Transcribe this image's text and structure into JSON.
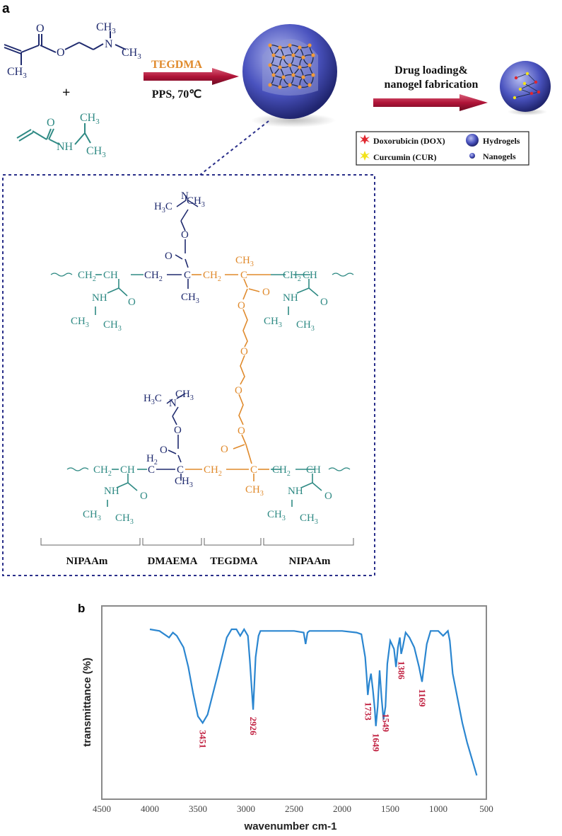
{
  "panel_a": {
    "label": "a",
    "reaction": {
      "dmaema": {
        "n_label": "N",
        "ch3_top": "CH",
        "ch3_bot": "CH",
        "ch3_left": "CH",
        "o1": "O",
        "o2": "O",
        "sub": "3"
      },
      "plus": "+",
      "nipaam": {
        "o": "O",
        "nh": "NH",
        "ch3_top": "CH",
        "ch3_bot": "CH",
        "sub": "3"
      },
      "arrow1_top": "TEGDMA",
      "arrow1_bottom": "PPS, 70℃",
      "arrow2_line1": "Drug loading&",
      "arrow2_line2": "nanogel fabrication"
    },
    "legend": {
      "items": [
        {
          "text": "Doxorubicin (DOX)",
          "icon": "red-star-icon",
          "color": "#e0262e"
        },
        {
          "text": "Hydrogels",
          "icon": "large-sphere-icon",
          "color": "#3a43a8"
        },
        {
          "text": "Curcumin (CUR)",
          "icon": "yellow-star-icon",
          "color": "#f2e21a"
        },
        {
          "text": "Nanogels",
          "icon": "small-sphere-icon",
          "color": "#3a43a8"
        }
      ]
    },
    "structure": {
      "ch2": "CH",
      "ch": "CH",
      "c": "C",
      "nh": "NH",
      "o": "O",
      "h2": "H",
      "ch3": "CH",
      "h3c": "H",
      "n": "N",
      "sub2": "2",
      "sub3": "3",
      "segments": [
        "NIPAAm",
        "DMAEMA",
        "TEGDMA",
        "NIPAAm"
      ]
    }
  },
  "panel_b": {
    "label": "b",
    "ylabel": "transmittance (%)",
    "xlabel": "wavenumber cm-1",
    "xticks": [
      "4500",
      "4000",
      "3500",
      "3000",
      "2500",
      "2000",
      "1500",
      "1000",
      "500"
    ],
    "peak_labels": [
      "3451",
      "2926",
      "1733",
      "1649",
      "1549",
      "1386",
      "1169"
    ],
    "colors": {
      "line": "#2b86d0",
      "peak": "#c01f3f"
    }
  },
  "chart_data": {
    "type": "line",
    "xlabel": "wavenumber cm-1",
    "ylabel": "transmittance (%)",
    "xlim": [
      4500,
      500
    ],
    "ylim": [
      0,
      100
    ],
    "x": [
      4000,
      3900,
      3800,
      3760,
      3720,
      3650,
      3600,
      3550,
      3500,
      3451,
      3400,
      3300,
      3200,
      3150,
      3100,
      3060,
      3020,
      2980,
      2960,
      2940,
      2926,
      2900,
      2870,
      2850,
      2800,
      2700,
      2600,
      2500,
      2400,
      2380,
      2360,
      2340,
      2300,
      2200,
      2000,
      1850,
      1800,
      1760,
      1745,
      1733,
      1720,
      1700,
      1680,
      1660,
      1649,
      1630,
      1610,
      1590,
      1570,
      1549,
      1530,
      1500,
      1460,
      1440,
      1420,
      1400,
      1386,
      1370,
      1340,
      1300,
      1250,
      1200,
      1169,
      1150,
      1120,
      1080,
      1000,
      950,
      900,
      880,
      850,
      800,
      750,
      700,
      650,
      600
    ],
    "y": [
      97,
      96,
      92,
      95,
      93,
      86,
      74,
      58,
      44,
      40,
      45,
      68,
      92,
      97,
      97,
      93,
      97,
      93,
      78,
      60,
      48,
      80,
      93,
      96,
      96,
      96,
      96,
      96,
      95,
      88,
      95,
      96,
      96,
      96,
      96,
      95,
      94,
      80,
      68,
      57,
      64,
      70,
      60,
      48,
      38,
      50,
      72,
      55,
      42,
      50,
      76,
      90,
      85,
      74,
      86,
      92,
      82,
      86,
      95,
      92,
      86,
      74,
      65,
      74,
      88,
      96,
      96,
      93,
      96,
      90,
      70,
      55,
      40,
      28,
      18,
      8
    ]
  }
}
